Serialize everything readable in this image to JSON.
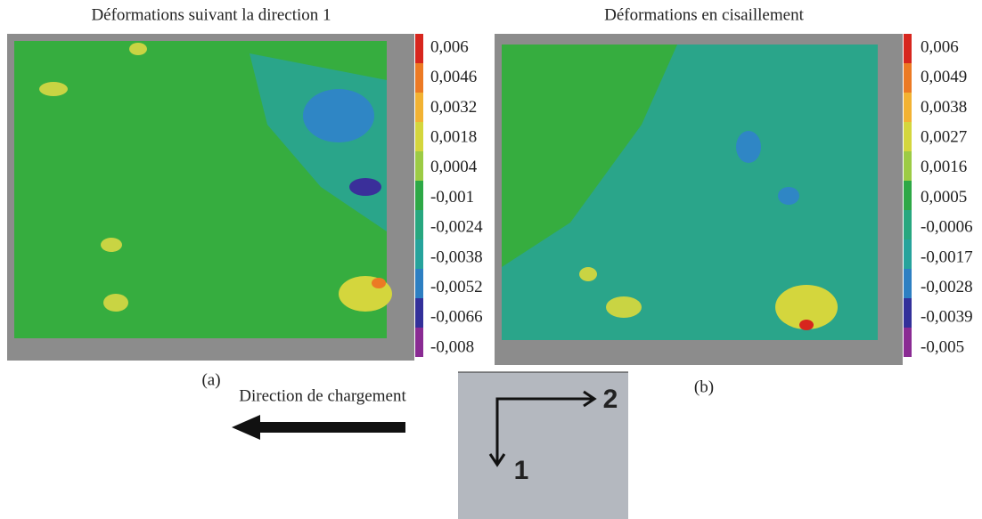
{
  "panels": [
    {
      "title": "Déformations suivant la direction 1",
      "caption": "(a)",
      "scale": [
        "0,006",
        "0,0046",
        "0,0032",
        "0,0018",
        "0,0004",
        "-0,001",
        "-0,0024",
        "-0,0038",
        "-0,0052",
        "-0,0066",
        "-0,008"
      ]
    },
    {
      "title": "Déformations en cisaillement",
      "caption": "(b)",
      "scale": [
        "0,006",
        "0,0049",
        "0,0038",
        "0,0027",
        "0,0016",
        "0,0005",
        "-0,0006",
        "-0,0017",
        "-0,0028",
        "-0,0039",
        "-0,005"
      ]
    }
  ],
  "loading": {
    "label": "Direction de chargement"
  },
  "axes": {
    "horizontal": "2",
    "vertical": "1"
  }
}
